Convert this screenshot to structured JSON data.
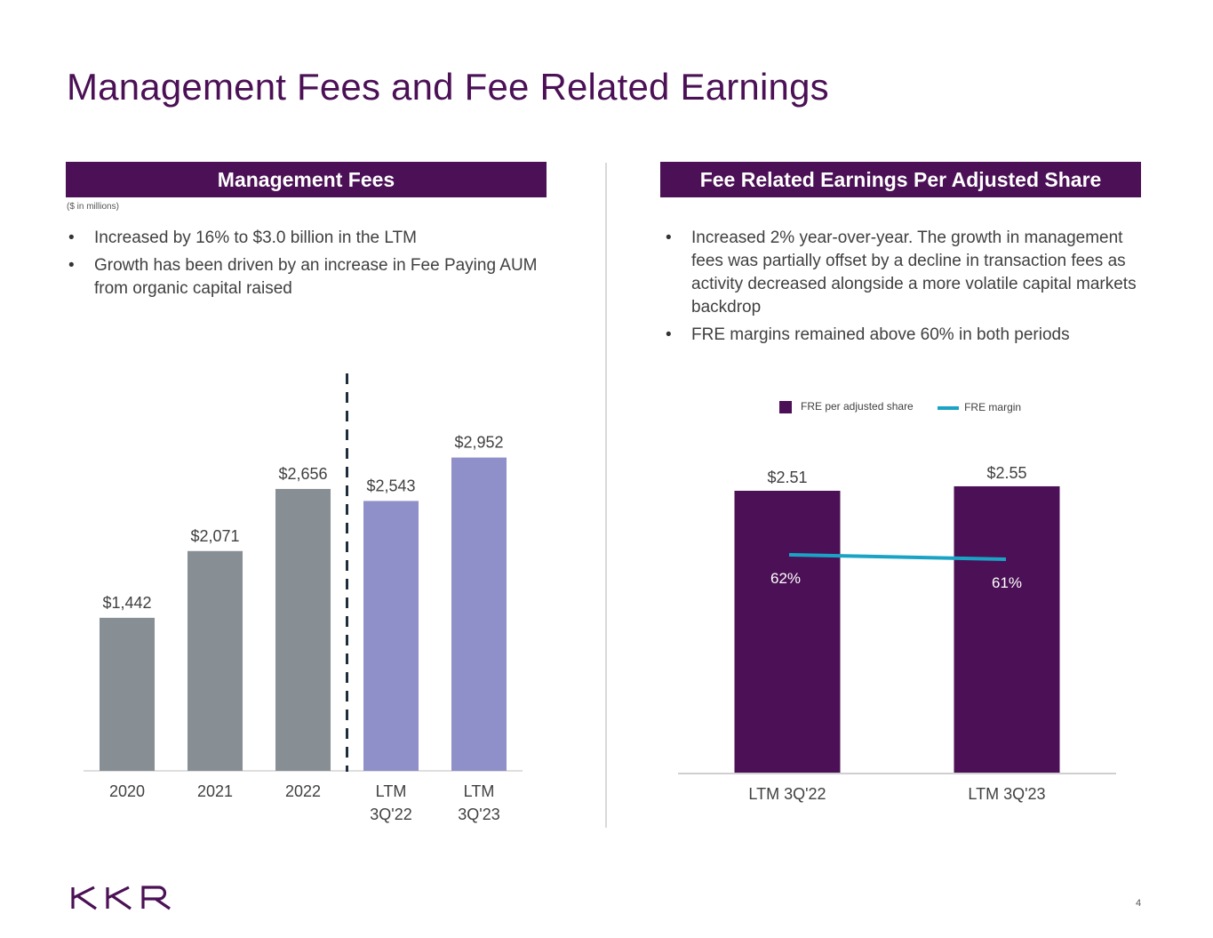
{
  "title": "Management Fees and Fee Related Earnings",
  "left_panel": {
    "header": "Management Fees",
    "units_note": "($ in millions)",
    "bullets": [
      "Increased by 16% to $3.0 billion in the LTM",
      "Growth has been driven by an increase in Fee Paying AUM from organic capital raised"
    ]
  },
  "right_panel": {
    "header": "Fee Related Earnings Per Adjusted Share",
    "bullets": [
      "Increased 2% year-over-year. The growth in management fees was partially offset by a decline in transaction fees as activity decreased alongside a more volatile capital markets backdrop",
      "FRE margins remained above 60% in both periods"
    ],
    "legend": {
      "bar_label": "FRE per adjusted share",
      "line_label": "FRE margin"
    }
  },
  "chart_data": [
    {
      "type": "bar",
      "title": "Management Fees",
      "categories": [
        "2020",
        "2021",
        "2022",
        "LTM 3Q'22",
        "LTM 3Q'23"
      ],
      "category_lines": [
        [
          "2020"
        ],
        [
          "2021"
        ],
        [
          "2022"
        ],
        [
          "LTM",
          "3Q'22"
        ],
        [
          "LTM",
          "3Q'23"
        ]
      ],
      "values": [
        1442,
        2071,
        2656,
        2543,
        2952
      ],
      "value_labels": [
        "$1,442",
        "$2,071",
        "$2,656",
        "$2,543",
        "$2,952"
      ],
      "colors": [
        "#878f94",
        "#878f94",
        "#878f94",
        "#8f90c9",
        "#8f90c9"
      ],
      "divider_after_index": 2,
      "ylim": [
        0,
        3200
      ],
      "xlabel": "",
      "ylabel": "($ in millions)"
    },
    {
      "type": "bar",
      "title": "Fee Related Earnings Per Adjusted Share",
      "categories": [
        "LTM 3Q'22",
        "LTM 3Q'23"
      ],
      "series": [
        {
          "name": "FRE per adjusted share",
          "kind": "bar",
          "values": [
            2.51,
            2.55
          ],
          "value_labels": [
            "$2.51",
            "$2.55"
          ],
          "color": "#4b1055"
        },
        {
          "name": "FRE margin",
          "kind": "line",
          "values": [
            62,
            61
          ],
          "value_labels": [
            "62%",
            "61%"
          ],
          "color": "#1ba3c6"
        }
      ],
      "ylim": [
        0,
        2.7
      ],
      "legend_position": "top"
    }
  ],
  "footer": {
    "logo_text": "KKR",
    "page_number": "4"
  }
}
